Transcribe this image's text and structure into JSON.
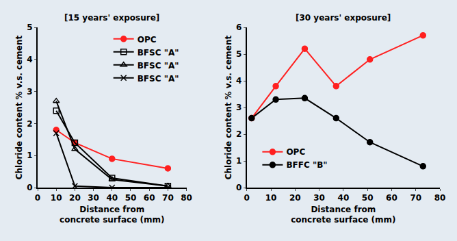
{
  "chart_data": [
    {
      "type": "line",
      "title": "[15 years' exposure]",
      "x_label": "Distance from concrete surface (mm)",
      "y_label": "Chloride content % v.s. cement",
      "xlim": [
        0,
        80
      ],
      "xticks": [
        0,
        10,
        20,
        30,
        40,
        50,
        60,
        70,
        80
      ],
      "ylim": [
        0,
        5
      ],
      "yticks": [
        0,
        1,
        2,
        3,
        4,
        5
      ],
      "grid": false,
      "legend": "upper right",
      "series": [
        {
          "name": "OPC",
          "color": "#ff2020",
          "marker": "circle",
          "x": [
            10,
            20,
            40,
            70
          ],
          "values": [
            1.8,
            1.4,
            0.9,
            0.6
          ]
        },
        {
          "name": "BFSC \"A\"",
          "color": "#000000",
          "marker": "square-open",
          "x": [
            10,
            20,
            40,
            70
          ],
          "values": [
            2.4,
            1.4,
            0.3,
            0.05
          ]
        },
        {
          "name": "BFSC \"A\"",
          "color": "#000000",
          "marker": "triangle-up-open",
          "x": [
            10,
            20,
            40,
            70
          ],
          "values": [
            2.7,
            1.2,
            0.25,
            0.05
          ]
        },
        {
          "name": "BFSC \"A\"",
          "color": "#000000",
          "marker": "x-thin",
          "x": [
            10,
            20,
            40,
            70
          ],
          "values": [
            1.7,
            0.05,
            0.0,
            0.0
          ]
        }
      ]
    },
    {
      "type": "line",
      "title": "[30 years' exposure]",
      "x_label": "Distance from concrete surface (mm)",
      "y_label": "Chloride content % v.s. cement",
      "xlim": [
        0,
        80
      ],
      "xticks": [
        0,
        10,
        20,
        30,
        40,
        50,
        60,
        70,
        80
      ],
      "ylim": [
        0,
        6
      ],
      "yticks": [
        0,
        1,
        2,
        3,
        4,
        5,
        6
      ],
      "grid": false,
      "legend": "lower left",
      "series": [
        {
          "name": "OPC",
          "color": "#ff2020",
          "marker": "circle",
          "x": [
            2,
            12,
            24,
            37,
            51,
            73
          ],
          "values": [
            2.6,
            3.8,
            5.2,
            3.8,
            4.8,
            5.7
          ]
        },
        {
          "name": "BFFC \"B\"",
          "color": "#000000",
          "marker": "circle",
          "x": [
            2,
            12,
            24,
            37,
            51,
            73
          ],
          "values": [
            2.6,
            3.3,
            3.35,
            2.6,
            1.7,
            0.8
          ]
        }
      ]
    }
  ]
}
